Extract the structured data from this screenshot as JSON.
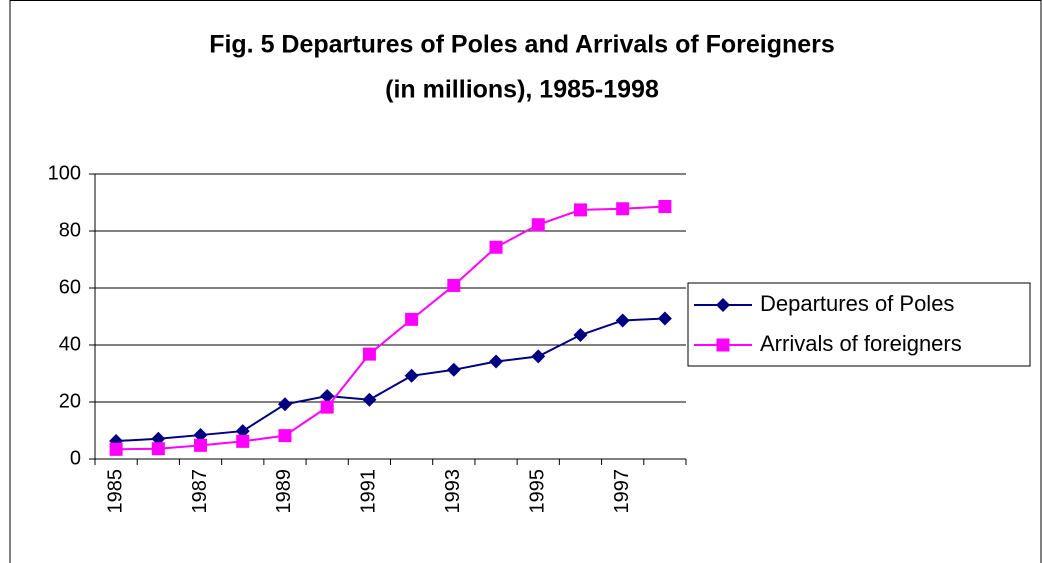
{
  "chart_data": {
    "type": "line",
    "title": "Fig. 5 Departures of Poles and Arrivals of Foreigners",
    "subtitle": "(in millions), 1985-1998",
    "categories": [
      "1985",
      null,
      "1987",
      null,
      "1989",
      null,
      "1991",
      null,
      "1993",
      null,
      "1995",
      null,
      "1997",
      null
    ],
    "series": [
      {
        "name": "Departures of Poles",
        "color": "#000080",
        "marker": "diamond",
        "values": [
          6.3,
          7.1,
          8.4,
          9.8,
          19.2,
          22.1,
          20.8,
          29.2,
          31.3,
          34.2,
          36.0,
          43.5,
          48.6,
          49.3
        ]
      },
      {
        "name": "Arrivals of foreigners",
        "color": "#ff00ff",
        "marker": "square",
        "values": [
          3.4,
          3.6,
          4.8,
          6.2,
          8.2,
          18.2,
          36.8,
          49.0,
          60.9,
          74.3,
          82.2,
          87.4,
          87.8,
          88.6
        ]
      }
    ],
    "ylim": [
      0,
      100
    ],
    "yticks": [
      0,
      20,
      40,
      60,
      80,
      100
    ],
    "grid": true,
    "legend": "right"
  }
}
